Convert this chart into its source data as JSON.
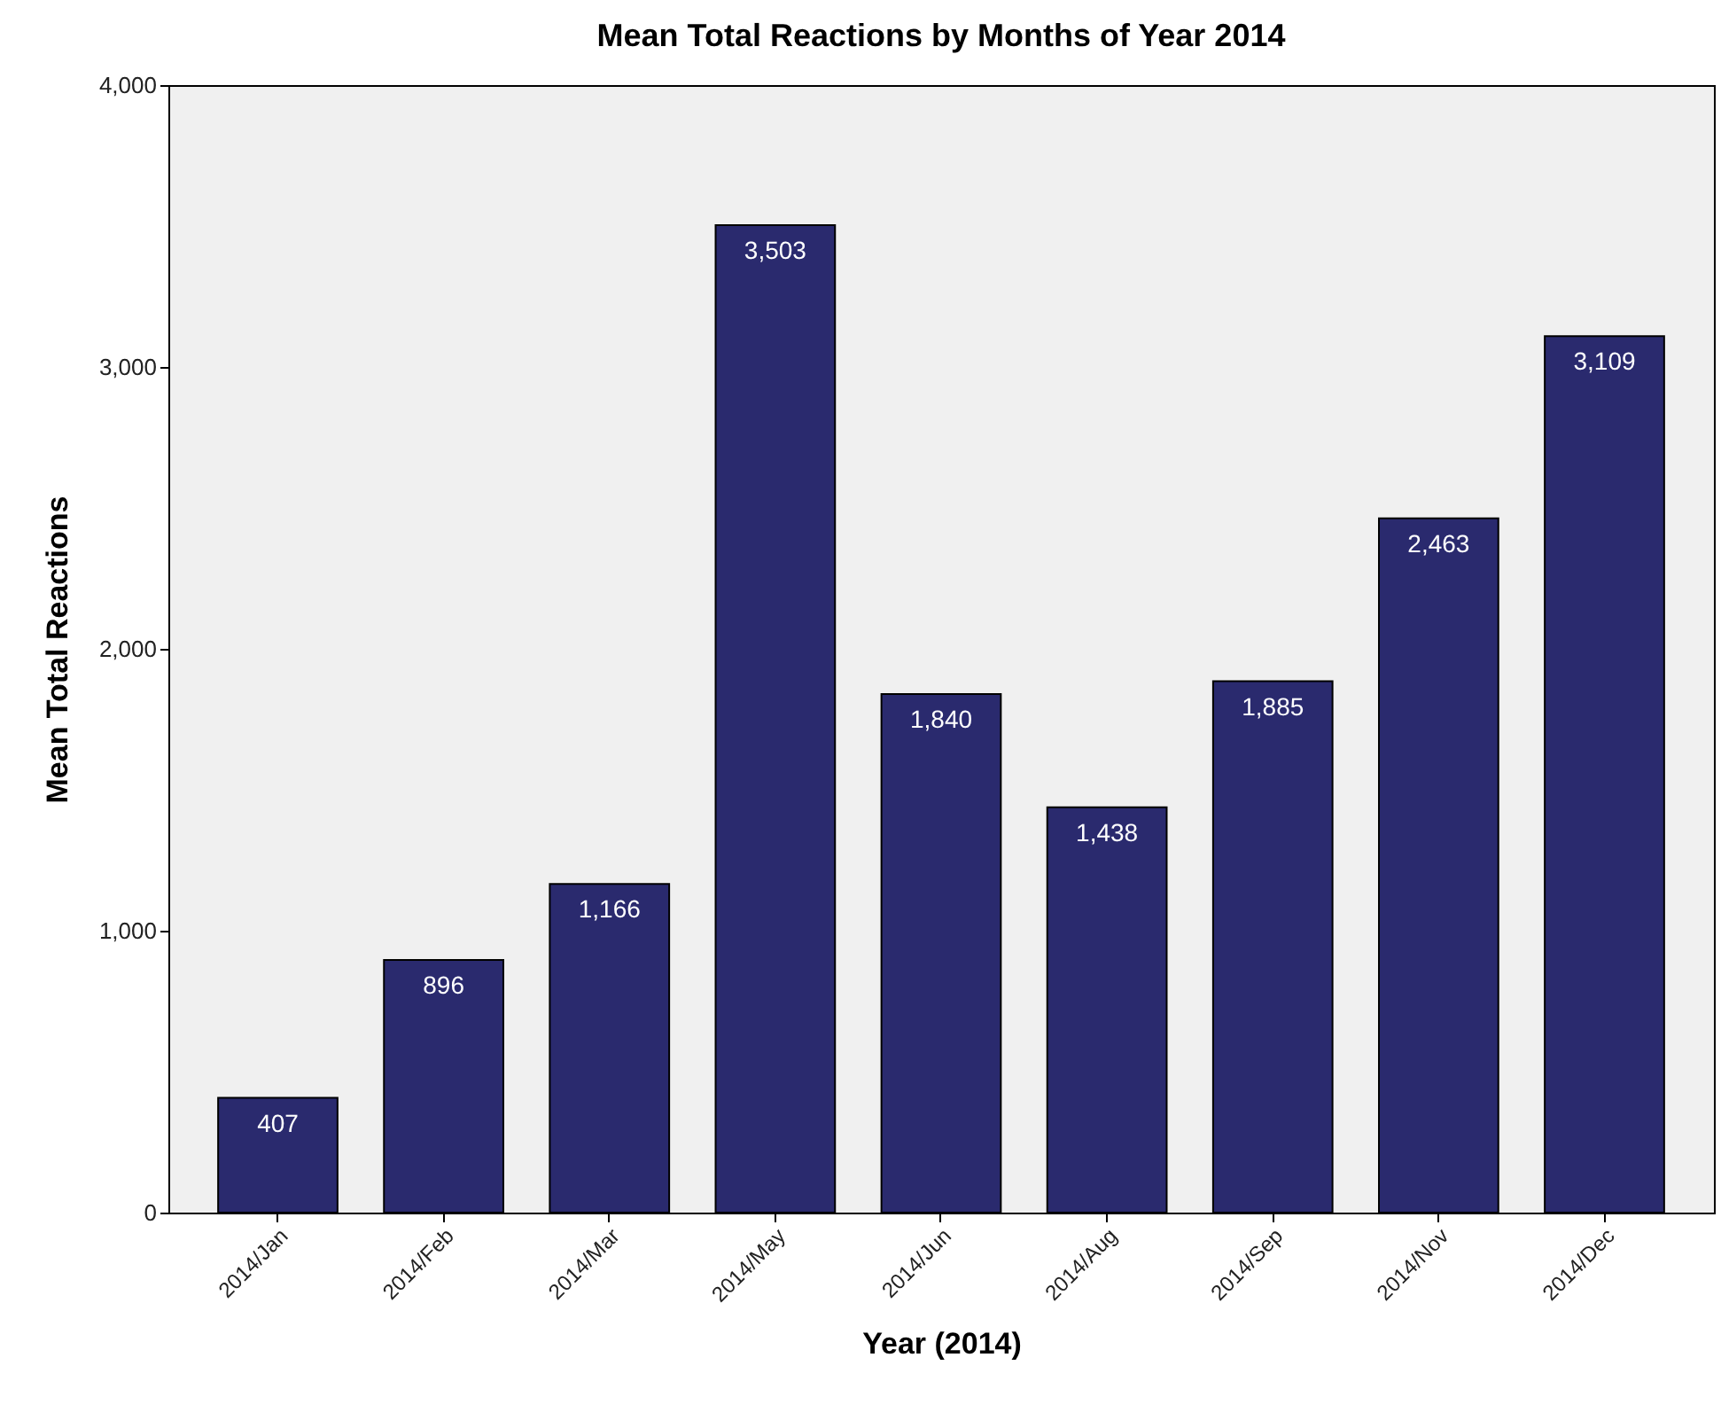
{
  "chart_data": {
    "type": "bar",
    "title": "Mean Total Reactions by Months of Year 2014",
    "xlabel": "Year (2014)",
    "ylabel": "Mean Total Reactions",
    "categories": [
      "2014/Jan",
      "2014/Feb",
      "2014/Mar",
      "2014/May",
      "2014/Jun",
      "2014/Aug",
      "2014/Sep",
      "2014/Nov",
      "2014/Dec"
    ],
    "values": [
      407,
      896,
      1166,
      3503,
      1840,
      1438,
      1885,
      2463,
      3109
    ],
    "value_labels": [
      "407",
      "896",
      "1,166",
      "3,503",
      "1,840",
      "1,438",
      "1,885",
      "2,463",
      "3,109"
    ],
    "color": "#2a2a6e",
    "ylim": [
      0,
      4000
    ],
    "yticks": [
      {
        "value": 0,
        "label": "0"
      },
      {
        "value": 1000,
        "label": "1,000"
      },
      {
        "value": 2000,
        "label": "2,000"
      },
      {
        "value": 3000,
        "label": "3,000"
      },
      {
        "value": 4000,
        "label": "4,000"
      }
    ],
    "grid": false
  }
}
